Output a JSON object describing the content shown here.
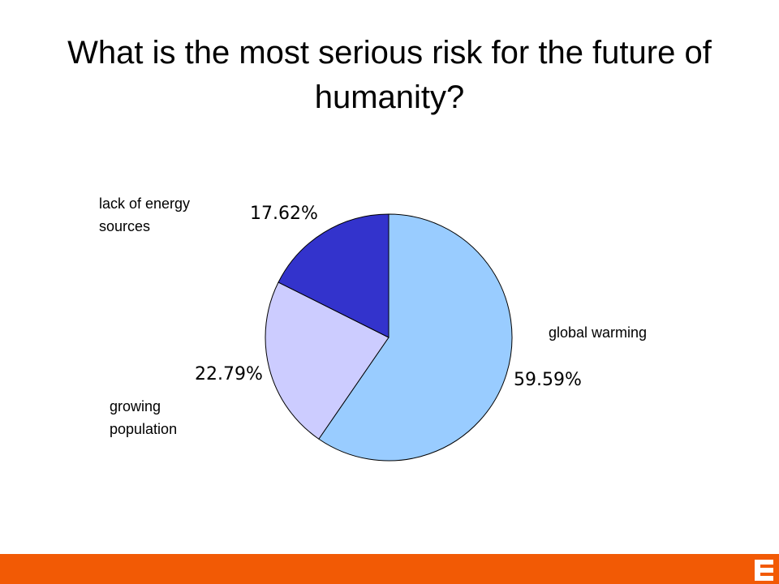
{
  "chart_data": {
    "type": "pie",
    "title": "What is the most serious risk for the future of humanity?",
    "categories": [
      "global warming",
      "growing population",
      "lack of energy sources"
    ],
    "values": [
      59.59,
      22.79,
      17.62
    ],
    "value_labels": [
      "59.59%",
      "22.79%",
      "17.62%"
    ],
    "colors": [
      "#99ccff",
      "#ccccff",
      "#3333cc"
    ]
  }
}
